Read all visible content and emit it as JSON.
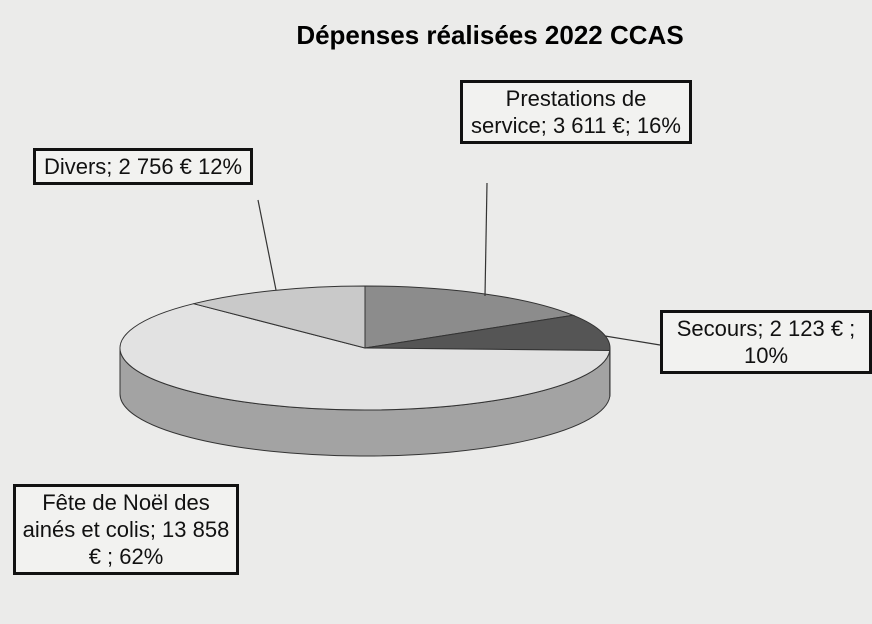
{
  "chart_data": {
    "type": "pie",
    "title": "Dépenses réalisées 2022 CCAS",
    "values": [
      3611,
      2123,
      13858,
      2756
    ],
    "value_labels": [
      "Prestations de service; 3 611 €; 16%",
      "Secours; 2 123 € ; 10%",
      "Fête de Noël des ainés et colis; 13 858 € ; 62%",
      "Divers; 2 756 € 12%"
    ],
    "colors": [
      "#8c8c8c",
      "#555555",
      "#e2e2e2",
      "#c9c9c9"
    ]
  }
}
